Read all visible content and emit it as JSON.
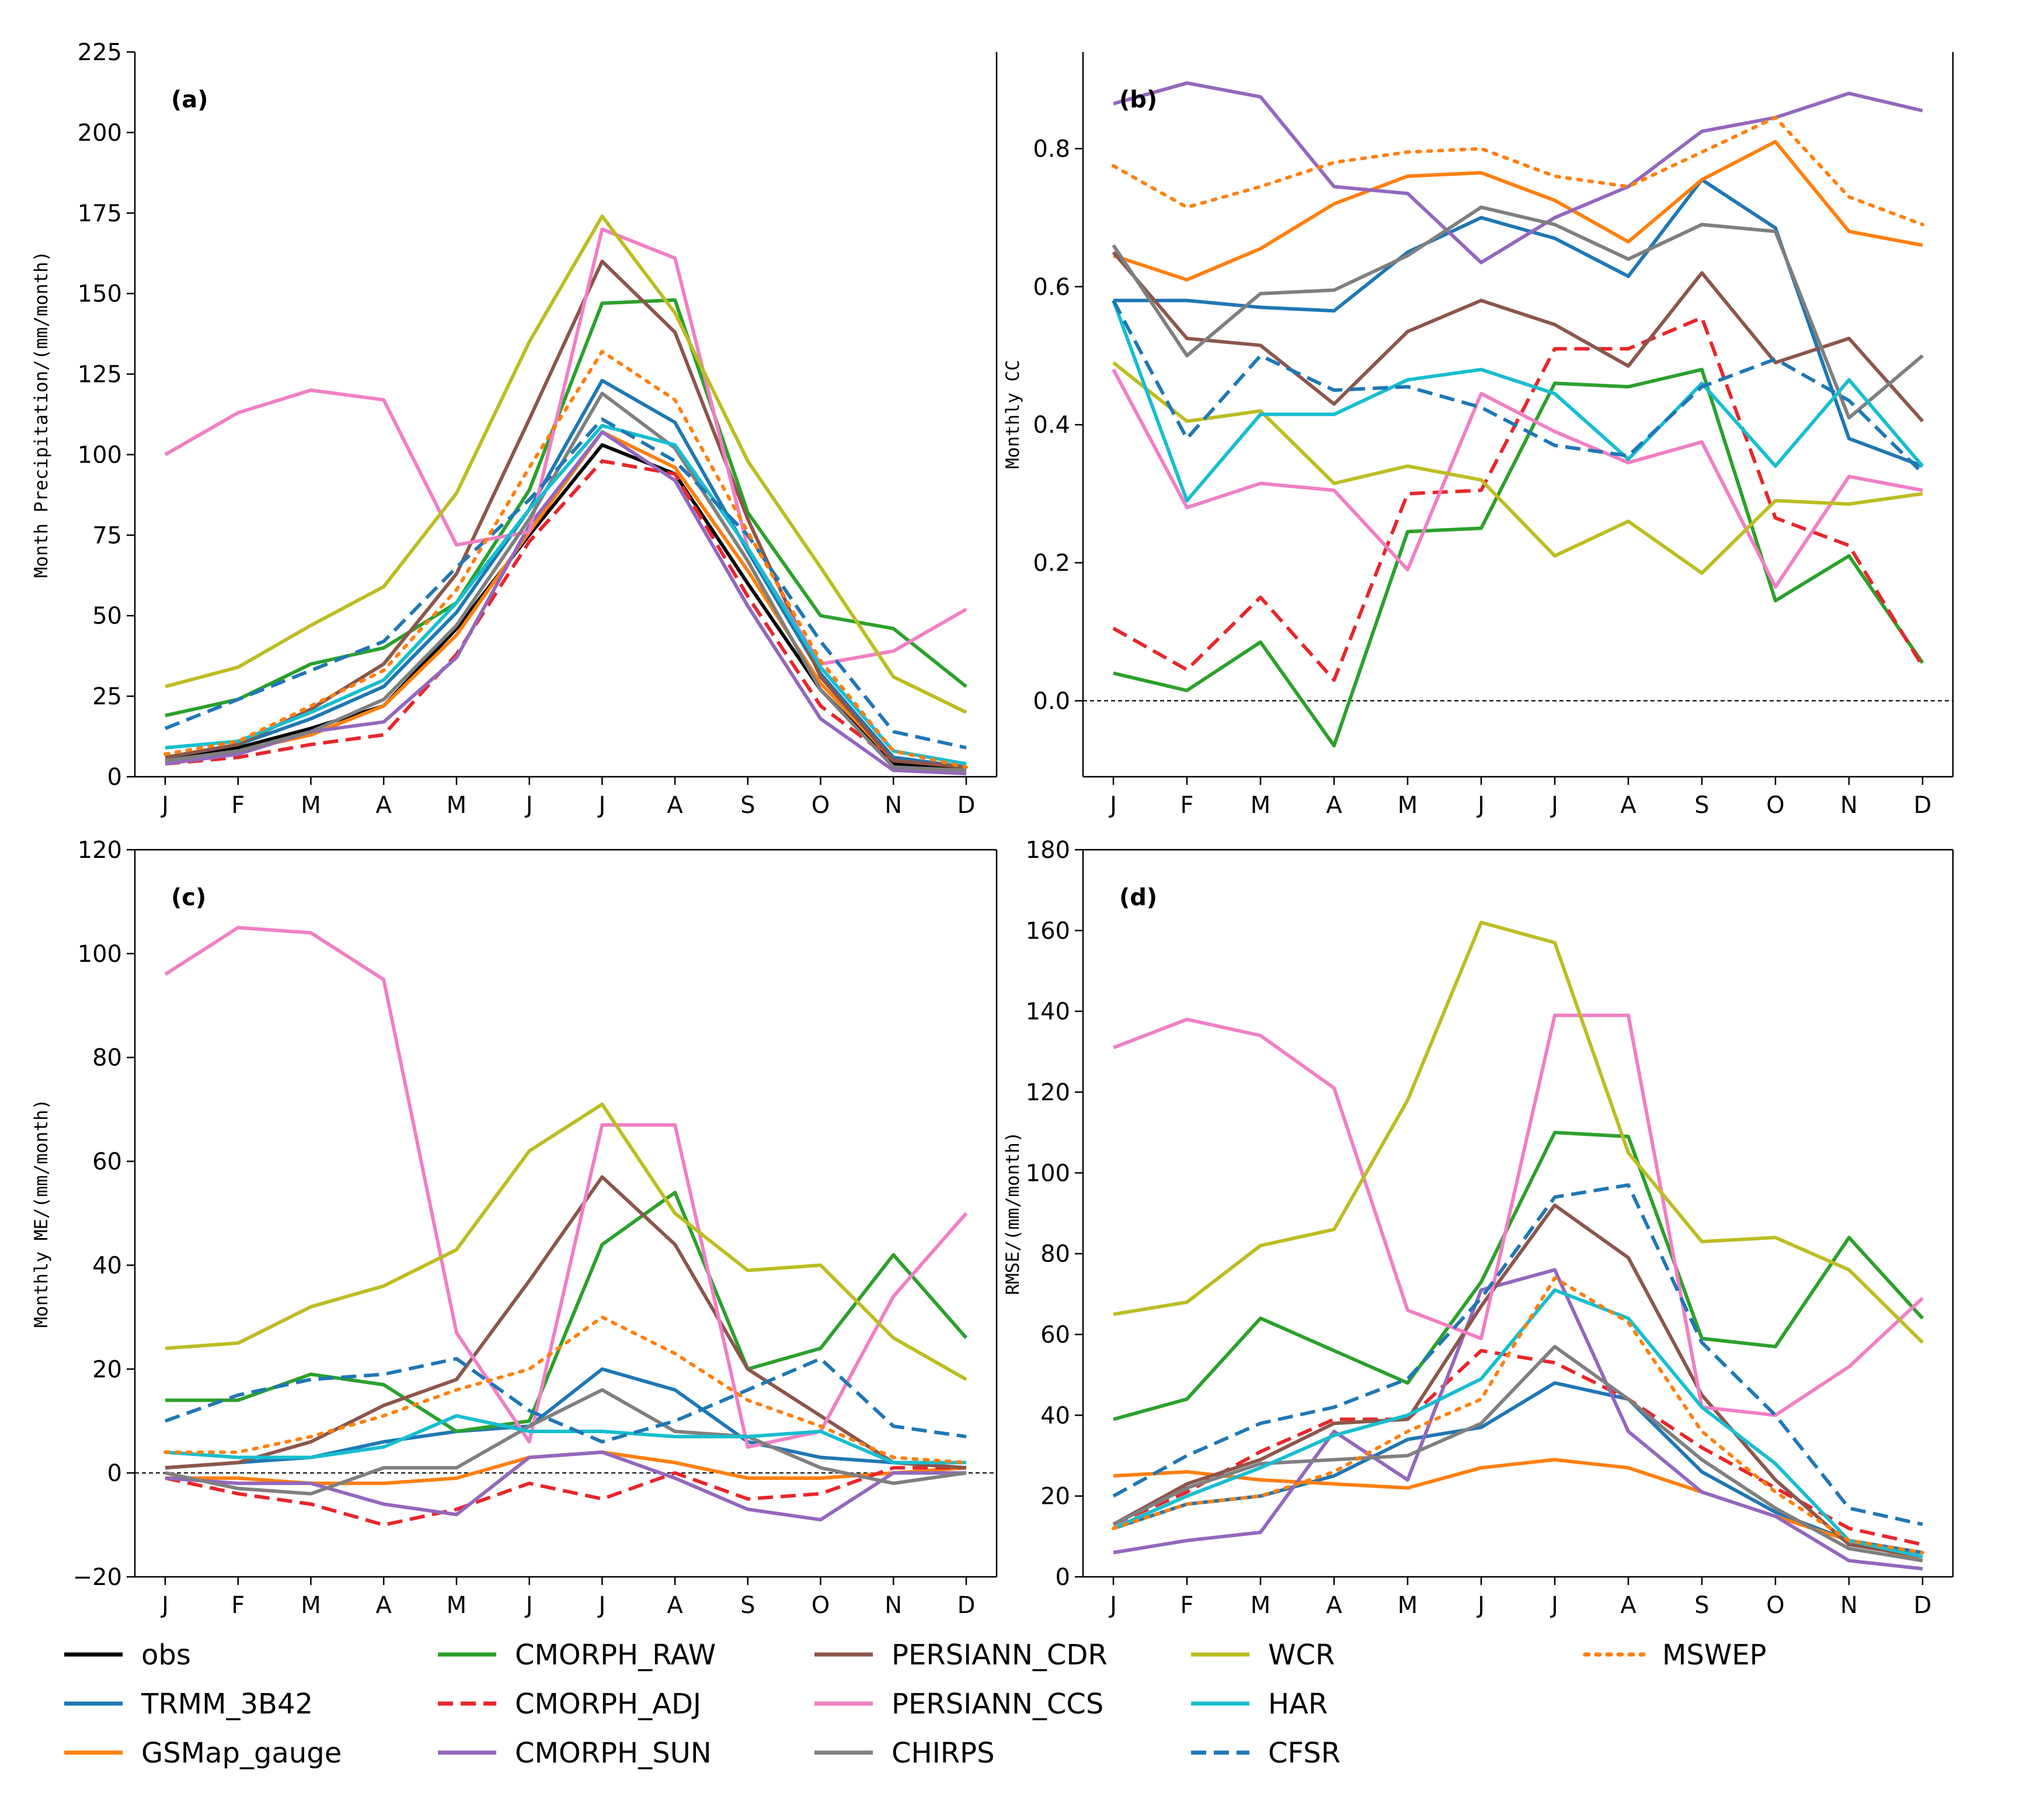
{
  "colors": {
    "obs": "#000000",
    "TRMM_3B42": "#1f77b4",
    "GSMap_gauge": "#ff7f0e",
    "CMORPH_RAW": "#2ca02c",
    "CMORPH_ADJ": "#e8262a",
    "CMORPH_SUN": "#9467bd",
    "PERSIANN_CDR": "#8c564b",
    "PERSIANN_CCS": "#f07fc4",
    "CHIRPS": "#7f7f7f",
    "WCR": "#bcbd22",
    "HAR": "#17becf",
    "CFSR": "#1f77b4",
    "MSWEP": "#ff7f0e"
  },
  "legend": [
    {
      "name": "obs",
      "style": "solid"
    },
    {
      "name": "TRMM_3B42",
      "style": "solid"
    },
    {
      "name": "GSMap_gauge",
      "style": "solid"
    },
    {
      "name": "CMORPH_RAW",
      "style": "solid"
    },
    {
      "name": "CMORPH_ADJ",
      "style": "dashed"
    },
    {
      "name": "CMORPH_SUN",
      "style": "solid"
    },
    {
      "name": "PERSIANN_CDR",
      "style": "solid"
    },
    {
      "name": "PERSIANN_CCS",
      "style": "solid"
    },
    {
      "name": "CHIRPS",
      "style": "solid"
    },
    {
      "name": "WCR",
      "style": "solid"
    },
    {
      "name": "HAR",
      "style": "solid"
    },
    {
      "name": "CFSR",
      "style": "dashed"
    },
    {
      "name": "MSWEP",
      "style": "dotted"
    }
  ],
  "chart_data": [
    {
      "type": "line",
      "panel_label": "(a)",
      "ylabel": "Month Precipitation/(mm/month)",
      "categories": [
        "J",
        "F",
        "M",
        "A",
        "M",
        "J",
        "J",
        "A",
        "S",
        "O",
        "N",
        "D"
      ],
      "ylim": [
        0,
        225
      ],
      "yticks": [
        0,
        25,
        50,
        75,
        100,
        125,
        150,
        175,
        200,
        225
      ],
      "zero_line": false,
      "series": [
        {
          "name": "obs",
          "values": [
            5,
            9,
            15,
            22,
            46,
            75,
            103,
            94,
            60,
            27,
            4,
            2
          ]
        },
        {
          "name": "TRMM_3B42",
          "values": [
            6,
            10,
            18,
            28,
            51,
            83,
            123,
            110,
            70,
            32,
            6,
            3
          ]
        },
        {
          "name": "GSMap_gauge",
          "values": [
            4,
            8,
            13,
            22,
            44,
            76,
            107,
            96,
            64,
            29,
            5,
            3
          ]
        },
        {
          "name": "CMORPH_RAW",
          "values": [
            19,
            24,
            35,
            40,
            54,
            89,
            147,
            148,
            82,
            50,
            46,
            28
          ]
        },
        {
          "name": "CMORPH_ADJ",
          "values": [
            4,
            6,
            10,
            13,
            38,
            73,
            98,
            94,
            56,
            22,
            5,
            3
          ]
        },
        {
          "name": "CMORPH_SUN",
          "values": [
            4,
            7,
            14,
            17,
            37,
            78,
            107,
            92,
            53,
            18,
            2,
            1
          ]
        },
        {
          "name": "PERSIANN_CDR",
          "values": [
            6,
            10,
            21,
            35,
            63,
            111,
            160,
            138,
            80,
            31,
            5,
            3
          ]
        },
        {
          "name": "PERSIANN_CCS",
          "values": [
            100,
            113,
            120,
            117,
            72,
            76,
            170,
            161,
            71,
            35,
            39,
            52
          ]
        },
        {
          "name": "CHIRPS",
          "values": [
            5,
            8,
            14,
            24,
            47,
            80,
            119,
            102,
            67,
            27,
            3,
            2
          ]
        },
        {
          "name": "WCR",
          "values": [
            28,
            34,
            47,
            59,
            88,
            135,
            174,
            144,
            98,
            65,
            31,
            20
          ]
        },
        {
          "name": "HAR",
          "values": [
            9,
            11,
            20,
            30,
            54,
            83,
            109,
            103,
            71,
            34,
            8,
            4
          ]
        },
        {
          "name": "CFSR",
          "values": [
            15,
            24,
            33,
            42,
            65,
            86,
            111,
            98,
            75,
            42,
            14,
            9
          ]
        },
        {
          "name": "MSWEP",
          "values": [
            7,
            11,
            22,
            33,
            58,
            96,
            132,
            117,
            76,
            36,
            8,
            3
          ]
        }
      ]
    },
    {
      "type": "line",
      "panel_label": "(b)",
      "ylabel": "Monthly CC",
      "categories": [
        "J",
        "F",
        "M",
        "A",
        "M",
        "J",
        "J",
        "A",
        "S",
        "O",
        "N",
        "D"
      ],
      "ylim": [
        -0.11,
        0.94
      ],
      "yticks": [
        0.0,
        0.2,
        0.4,
        0.6,
        0.8
      ],
      "ytick_labels": [
        "0.0",
        "0.2",
        "0.4",
        "0.6",
        "0.8"
      ],
      "zero_line": true,
      "series": [
        {
          "name": "TRMM_3B42",
          "values": [
            0.58,
            0.58,
            0.57,
            0.565,
            0.65,
            0.7,
            0.67,
            0.615,
            0.755,
            0.685,
            0.38,
            0.34
          ]
        },
        {
          "name": "GSMap_gauge",
          "values": [
            0.645,
            0.61,
            0.655,
            0.72,
            0.76,
            0.765,
            0.725,
            0.665,
            0.755,
            0.81,
            0.68,
            0.66
          ]
        },
        {
          "name": "CMORPH_RAW",
          "values": [
            0.04,
            0.015,
            0.085,
            -0.065,
            0.245,
            0.25,
            0.46,
            0.455,
            0.48,
            0.145,
            0.21,
            0.055
          ]
        },
        {
          "name": "CMORPH_ADJ",
          "values": [
            0.105,
            0.045,
            0.15,
            0.03,
            0.3,
            0.305,
            0.51,
            0.51,
            0.555,
            0.265,
            0.225,
            0.05
          ]
        },
        {
          "name": "CMORPH_SUN",
          "values": [
            0.865,
            0.895,
            0.875,
            0.745,
            0.735,
            0.635,
            0.7,
            0.745,
            0.825,
            0.845,
            0.88,
            0.855
          ]
        },
        {
          "name": "PERSIANN_CDR",
          "values": [
            0.65,
            0.525,
            0.515,
            0.43,
            0.535,
            0.58,
            0.545,
            0.485,
            0.62,
            0.49,
            0.525,
            0.405
          ]
        },
        {
          "name": "PERSIANN_CCS",
          "values": [
            0.48,
            0.28,
            0.315,
            0.305,
            0.19,
            0.445,
            0.39,
            0.345,
            0.375,
            0.165,
            0.325,
            0.305
          ]
        },
        {
          "name": "CHIRPS",
          "values": [
            0.66,
            0.5,
            0.59,
            0.595,
            0.645,
            0.715,
            0.69,
            0.64,
            0.69,
            0.68,
            0.41,
            0.5
          ]
        },
        {
          "name": "WCR",
          "values": [
            0.49,
            0.405,
            0.42,
            0.315,
            0.34,
            0.32,
            0.21,
            0.26,
            0.185,
            0.29,
            0.285,
            0.3
          ]
        },
        {
          "name": "HAR",
          "values": [
            0.58,
            0.29,
            0.415,
            0.415,
            0.465,
            0.48,
            0.445,
            0.35,
            0.46,
            0.34,
            0.465,
            0.34
          ]
        },
        {
          "name": "CFSR",
          "values": [
            0.58,
            0.38,
            0.5,
            0.45,
            0.455,
            0.425,
            0.37,
            0.355,
            0.455,
            0.495,
            0.435,
            0.33
          ]
        },
        {
          "name": "MSWEP",
          "values": [
            0.775,
            0.715,
            0.745,
            0.78,
            0.795,
            0.8,
            0.76,
            0.745,
            0.795,
            0.845,
            0.73,
            0.69
          ]
        }
      ]
    },
    {
      "type": "line",
      "panel_label": "(c)",
      "ylabel": "Monthly ME/(mm/month)",
      "categories": [
        "J",
        "F",
        "M",
        "A",
        "M",
        "J",
        "J",
        "A",
        "S",
        "O",
        "N",
        "D"
      ],
      "ylim": [
        -20,
        120
      ],
      "yticks": [
        -20,
        0,
        20,
        40,
        60,
        80,
        100,
        120
      ],
      "ytick_labels": [
        "−20",
        "0",
        "20",
        "40",
        "60",
        "80",
        "100",
        "120"
      ],
      "zero_line": true,
      "series": [
        {
          "name": "TRMM_3B42",
          "values": [
            1,
            2,
            3,
            6,
            8,
            9,
            20,
            16,
            6,
            3,
            2,
            1
          ]
        },
        {
          "name": "GSMap_gauge",
          "values": [
            -1,
            -1,
            -2,
            -2,
            -1,
            3,
            4,
            2,
            -1,
            -1,
            0,
            1
          ]
        },
        {
          "name": "CMORPH_RAW",
          "values": [
            14,
            14,
            19,
            17,
            8,
            10,
            44,
            54,
            20,
            24,
            42,
            26
          ]
        },
        {
          "name": "CMORPH_ADJ",
          "values": [
            -1,
            -4,
            -6,
            -10,
            -7,
            -2,
            -5,
            0,
            -5,
            -4,
            1,
            1
          ]
        },
        {
          "name": "CMORPH_SUN",
          "values": [
            -1,
            -2,
            -2,
            -6,
            -8,
            3,
            4,
            -1,
            -7,
            -9,
            0,
            0
          ]
        },
        {
          "name": "PERSIANN_CDR",
          "values": [
            1,
            2,
            6,
            13,
            18,
            37,
            57,
            44,
            20,
            11,
            2,
            1
          ]
        },
        {
          "name": "PERSIANN_CCS",
          "values": [
            96,
            105,
            104,
            95,
            27,
            6,
            67,
            67,
            5,
            8,
            34,
            50
          ]
        },
        {
          "name": "CHIRPS",
          "values": [
            0,
            -3,
            -4,
            1,
            1,
            9,
            16,
            8,
            7,
            1,
            -2,
            0
          ]
        },
        {
          "name": "WCR",
          "values": [
            24,
            25,
            32,
            36,
            43,
            62,
            71,
            50,
            39,
            40,
            26,
            18
          ]
        },
        {
          "name": "HAR",
          "values": [
            4,
            3,
            3,
            5,
            11,
            8,
            8,
            7,
            7,
            8,
            2,
            2
          ]
        },
        {
          "name": "CFSR",
          "values": [
            10,
            15,
            18,
            19,
            22,
            12,
            6,
            10,
            16,
            22,
            9,
            7
          ]
        },
        {
          "name": "MSWEP",
          "values": [
            4,
            4,
            7,
            11,
            16,
            20,
            30,
            23,
            14,
            9,
            3,
            2
          ]
        }
      ]
    },
    {
      "type": "line",
      "panel_label": "(d)",
      "ylabel": "RMSE/(mm/month)",
      "categories": [
        "J",
        "F",
        "M",
        "A",
        "M",
        "J",
        "J",
        "A",
        "S",
        "O",
        "N",
        "D"
      ],
      "ylim": [
        0,
        180
      ],
      "yticks": [
        0,
        20,
        40,
        60,
        80,
        100,
        120,
        140,
        160,
        180
      ],
      "zero_line": false,
      "series": [
        {
          "name": "TRMM_3B42",
          "values": [
            12,
            18,
            20,
            25,
            34,
            37,
            48,
            44,
            26,
            16,
            9,
            6
          ]
        },
        {
          "name": "GSMap_gauge",
          "values": [
            25,
            26,
            24,
            23,
            22,
            27,
            29,
            27,
            21,
            15,
            9,
            4
          ]
        },
        {
          "name": "CMORPH_RAW",
          "values": [
            39,
            44,
            64,
            56,
            48,
            73,
            110,
            109,
            59,
            57,
            84,
            64
          ]
        },
        {
          "name": "CMORPH_ADJ",
          "values": [
            13,
            21,
            31,
            39,
            39,
            56,
            53,
            44,
            32,
            22,
            12,
            8
          ]
        },
        {
          "name": "CMORPH_SUN",
          "values": [
            6,
            9,
            11,
            36,
            24,
            71,
            76,
            36,
            21,
            15,
            4,
            2
          ]
        },
        {
          "name": "PERSIANN_CDR",
          "values": [
            13,
            23,
            29,
            38,
            39,
            67,
            92,
            79,
            45,
            24,
            8,
            5
          ]
        },
        {
          "name": "PERSIANN_CCS",
          "values": [
            131,
            138,
            134,
            121,
            66,
            59,
            139,
            139,
            42,
            40,
            52,
            69
          ]
        },
        {
          "name": "CHIRPS",
          "values": [
            13,
            22,
            28,
            29,
            30,
            38,
            57,
            44,
            29,
            17,
            7,
            4
          ]
        },
        {
          "name": "WCR",
          "values": [
            65,
            68,
            82,
            86,
            118,
            162,
            157,
            105,
            83,
            84,
            76,
            58
          ]
        },
        {
          "name": "HAR",
          "values": [
            12,
            20,
            27,
            35,
            40,
            49,
            71,
            64,
            42,
            28,
            9,
            5
          ]
        },
        {
          "name": "CFSR",
          "values": [
            20,
            30,
            38,
            42,
            49,
            69,
            94,
            97,
            58,
            40,
            17,
            13
          ]
        },
        {
          "name": "MSWEP",
          "values": [
            12,
            18,
            20,
            26,
            36,
            44,
            74,
            63,
            36,
            21,
            9,
            6
          ]
        }
      ]
    }
  ]
}
